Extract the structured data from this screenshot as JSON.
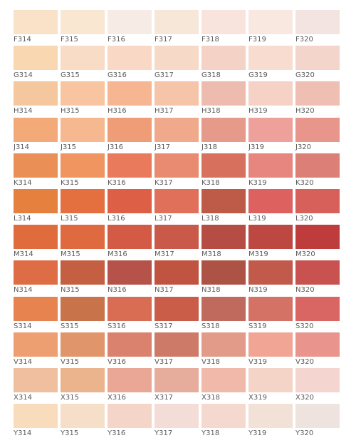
{
  "swatches": [
    {
      "code": "F314",
      "color": "#f9e2c8"
    },
    {
      "code": "F315",
      "color": "#fae7d2"
    },
    {
      "code": "F316",
      "color": "#f7ebe6"
    },
    {
      "code": "F317",
      "color": "#f7e7d9"
    },
    {
      "code": "F318",
      "color": "#f8e4dc"
    },
    {
      "code": "F319",
      "color": "#f9e8df"
    },
    {
      "code": "F320",
      "color": "#f3e3e1"
    },
    {
      "code": "G314",
      "color": "#f8d7b1"
    },
    {
      "code": "G315",
      "color": "#f8dcc6"
    },
    {
      "code": "G316",
      "color": "#f9d9c6"
    },
    {
      "code": "G317",
      "color": "#f7d9c7"
    },
    {
      "code": "G318",
      "color": "#f4d2c6"
    },
    {
      "code": "G319",
      "color": "#f7dccf"
    },
    {
      "code": "G320",
      "color": "#f3d5cc"
    },
    {
      "code": "H314",
      "color": "#f5c79f"
    },
    {
      "code": "H315",
      "color": "#f9c5a0"
    },
    {
      "code": "H316",
      "color": "#f7b692"
    },
    {
      "code": "H317",
      "color": "#f6c4a9"
    },
    {
      "code": "H318",
      "color": "#eebcaf"
    },
    {
      "code": "H319",
      "color": "#f5d1c6"
    },
    {
      "code": "H320",
      "color": "#f0bfb4"
    },
    {
      "code": "J314",
      "color": "#f3a978"
    },
    {
      "code": "J315",
      "color": "#f6b98f"
    },
    {
      "code": "J316",
      "color": "#ef9d77"
    },
    {
      "code": "J317",
      "color": "#f1a98b"
    },
    {
      "code": "J318",
      "color": "#e69a8a"
    },
    {
      "code": "J319",
      "color": "#eea19a"
    },
    {
      "code": "J320",
      "color": "#e8958c"
    },
    {
      "code": "K314",
      "color": "#ea8f55"
    },
    {
      "code": "K315",
      "color": "#f09560"
    },
    {
      "code": "K316",
      "color": "#e97b5c"
    },
    {
      "code": "K317",
      "color": "#e98b70"
    },
    {
      "code": "K318",
      "color": "#d8705e"
    },
    {
      "code": "K319",
      "color": "#e7857f"
    },
    {
      "code": "K320",
      "color": "#dc7f76"
    },
    {
      "code": "L314",
      "color": "#e5803f"
    },
    {
      "code": "L315",
      "color": "#e5703f"
    },
    {
      "code": "L316",
      "color": "#dd5f45"
    },
    {
      "code": "L317",
      "color": "#e0705a"
    },
    {
      "code": "L318",
      "color": "#bd5a48"
    },
    {
      "code": "L319",
      "color": "#dd615e"
    },
    {
      "code": "L320",
      "color": "#d8605a"
    },
    {
      "code": "M314",
      "color": "#e06c3e"
    },
    {
      "code": "M315",
      "color": "#e06a40"
    },
    {
      "code": "M316",
      "color": "#d35b45"
    },
    {
      "code": "M317",
      "color": "#c95a4a"
    },
    {
      "code": "M318",
      "color": "#b54d44"
    },
    {
      "code": "M319",
      "color": "#bd4842"
    },
    {
      "code": "M320",
      "color": "#be3c3c"
    },
    {
      "code": "N314",
      "color": "#de6c45"
    },
    {
      "code": "N315",
      "color": "#c45f42"
    },
    {
      "code": "N316",
      "color": "#b5524a"
    },
    {
      "code": "N317",
      "color": "#c05440"
    },
    {
      "code": "N318",
      "color": "#ad5346"
    },
    {
      "code": "N319",
      "color": "#c25a4c"
    },
    {
      "code": "N320",
      "color": "#c8524f"
    },
    {
      "code": "S314",
      "color": "#e7834f"
    },
    {
      "code": "S315",
      "color": "#c8734a"
    },
    {
      "code": "S316",
      "color": "#d86d54"
    },
    {
      "code": "S317",
      "color": "#c95d47"
    },
    {
      "code": "S318",
      "color": "#bf6a5c"
    },
    {
      "code": "S319",
      "color": "#d47365"
    },
    {
      "code": "S320",
      "color": "#d96663"
    },
    {
      "code": "V314",
      "color": "#ee9f72"
    },
    {
      "code": "V315",
      "color": "#e0956a"
    },
    {
      "code": "V316",
      "color": "#db826e"
    },
    {
      "code": "V317",
      "color": "#cd7a69"
    },
    {
      "code": "V318",
      "color": "#e29b88"
    },
    {
      "code": "V319",
      "color": "#f1a594"
    },
    {
      "code": "V320",
      "color": "#e9958d"
    },
    {
      "code": "X314",
      "color": "#efbf9f"
    },
    {
      "code": "X315",
      "color": "#ecb48c"
    },
    {
      "code": "X316",
      "color": "#eaa795"
    },
    {
      "code": "X317",
      "color": "#e6ad9d"
    },
    {
      "code": "X318",
      "color": "#f0b9a9"
    },
    {
      "code": "X319",
      "color": "#f4d4c6"
    },
    {
      "code": "X320",
      "color": "#f4d5cf"
    },
    {
      "code": "Y314",
      "color": "#f9dcbc"
    },
    {
      "code": "Y315",
      "color": "#f6dfc8"
    },
    {
      "code": "Y316",
      "color": "#f5d5c8"
    },
    {
      "code": "Y317",
      "color": "#f3ddd6"
    },
    {
      "code": "Y318",
      "color": "#f5d9cf"
    },
    {
      "code": "Y319",
      "color": "#f2e1d7"
    },
    {
      "code": "Y320",
      "color": "#efe3df"
    }
  ]
}
